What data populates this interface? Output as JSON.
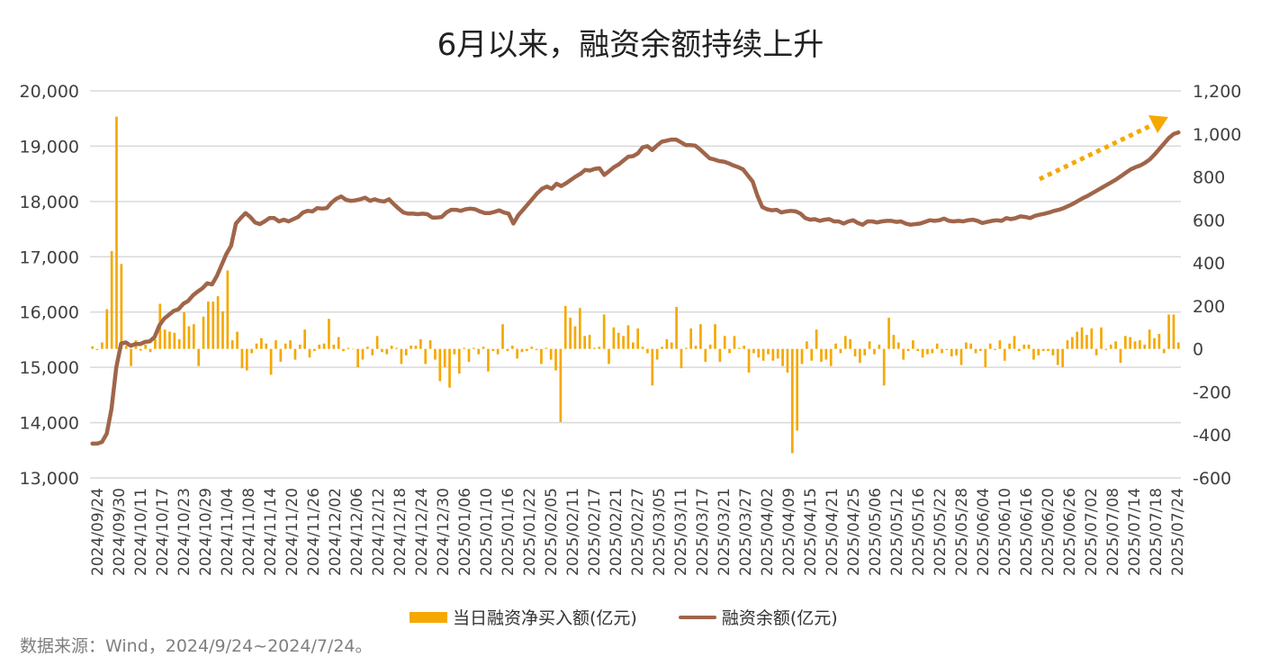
{
  "title": "6月以来，融资余额持续上升",
  "source": "数据来源：Wind，2024/9/24~2024/7/24。",
  "colors": {
    "bar": "#F5A800",
    "line": "#A0654A",
    "arrow": "#F5A800",
    "grid": "#d9d9d9",
    "axis_text": "#404040"
  },
  "chart_data": {
    "type": "bar+line",
    "title": "6月以来，融资余额持续上升",
    "legend": {
      "placement": "bottom",
      "entries": [
        "当日融资净买入额(亿元)",
        "融资余额(亿元)"
      ]
    },
    "grid": true,
    "y_left": {
      "range": [
        13000,
        20000
      ],
      "ticks": [
        13000,
        14000,
        15000,
        16000,
        17000,
        18000,
        19000,
        20000
      ],
      "tick_labels": [
        "13,000",
        "14,000",
        "15,000",
        "16,000",
        "17,000",
        "18,000",
        "19,000",
        "20,000"
      ]
    },
    "y_right": {
      "range": [
        -600,
        1200
      ],
      "ticks": [
        -600,
        -400,
        -200,
        0,
        200,
        400,
        600,
        800,
        1000,
        1200
      ],
      "tick_labels": [
        "-600",
        "-400",
        "-200",
        "0",
        "200",
        "400",
        "600",
        "800",
        "1,000",
        "1,200"
      ]
    },
    "x_tick_labels": [
      "2024/09/24",
      "2024/09/30",
      "2024/10/11",
      "2024/10/17",
      "2024/10/23",
      "2024/10/29",
      "2024/11/04",
      "2024/11/08",
      "2024/11/14",
      "2024/11/20",
      "2024/11/26",
      "2024/12/02",
      "2024/12/06",
      "2024/12/12",
      "2024/12/18",
      "2024/12/24",
      "2024/12/30",
      "2025/01/06",
      "2025/01/10",
      "2025/01/16",
      "2025/01/22",
      "2025/02/05",
      "2025/02/11",
      "2025/02/17",
      "2025/02/21",
      "2025/02/27",
      "2025/03/05",
      "2025/03/11",
      "2025/03/17",
      "2025/03/21",
      "2025/03/27",
      "2025/04/02",
      "2025/04/09",
      "2025/04/15",
      "2025/04/21",
      "2025/04/25",
      "2025/05/06",
      "2025/05/12",
      "2025/05/16",
      "2025/05/22",
      "2025/05/28",
      "2025/06/04",
      "2025/06/10",
      "2025/06/16",
      "2025/06/20",
      "2025/06/26",
      "2025/07/02",
      "2025/07/08",
      "2025/07/14",
      "2025/07/18",
      "2025/07/24"
    ],
    "series": [
      {
        "name": "当日融资净买入额(亿元)",
        "type": "bar",
        "axis": "right",
        "values": [
          12,
          -5,
          30,
          185,
          455,
          1080,
          395,
          15,
          -80,
          40,
          -8,
          20,
          -15,
          45,
          210,
          90,
          80,
          75,
          45,
          170,
          105,
          115,
          -80,
          150,
          220,
          220,
          245,
          175,
          365,
          40,
          80,
          -90,
          -100,
          -20,
          25,
          50,
          25,
          -120,
          40,
          -60,
          25,
          40,
          -50,
          20,
          90,
          -40,
          -10,
          20,
          25,
          140,
          20,
          55,
          -10,
          5,
          0,
          -85,
          -50,
          10,
          -30,
          60,
          -15,
          -25,
          15,
          5,
          -70,
          -30,
          15,
          15,
          45,
          -70,
          40,
          -50,
          -150,
          -85,
          -180,
          -25,
          -115,
          5,
          -60,
          5,
          -25,
          10,
          -105,
          -10,
          -25,
          115,
          -10,
          15,
          -45,
          -15,
          -10,
          10,
          -5,
          -70,
          5,
          -50,
          -100,
          -340,
          200,
          145,
          105,
          190,
          60,
          65,
          5,
          10,
          160,
          -70,
          100,
          75,
          60,
          110,
          30,
          95,
          10,
          -20,
          -170,
          -50,
          10,
          45,
          30,
          195,
          -90,
          5,
          95,
          15,
          115,
          -60,
          20,
          115,
          -60,
          60,
          -20,
          60,
          5,
          15,
          -110,
          -20,
          -40,
          -55,
          -25,
          -55,
          -45,
          -80,
          -110,
          -485,
          -380,
          -70,
          35,
          -55,
          90,
          -60,
          -50,
          -80,
          25,
          -20,
          60,
          45,
          -35,
          -65,
          -30,
          35,
          -25,
          20,
          -170,
          145,
          65,
          30,
          -50,
          -10,
          40,
          -10,
          -40,
          -25,
          -20,
          25,
          -20,
          -5,
          -35,
          -30,
          -75,
          30,
          25,
          -20,
          -10,
          -85,
          25,
          -5,
          40,
          -55,
          25,
          60,
          -10,
          20,
          20,
          -50,
          -30,
          -10,
          -10,
          -30,
          -75,
          -85,
          40,
          55,
          80,
          100,
          65,
          95,
          -30,
          100,
          -5,
          20,
          35,
          -65,
          60,
          55,
          35,
          40,
          20,
          90,
          50,
          70,
          -20,
          160,
          160,
          30
        ]
      },
      {
        "name": "融资余额(亿元)",
        "type": "line",
        "axis": "left",
        "values": [
          13620,
          13620,
          13650,
          13800,
          14250,
          15000,
          15430,
          15450,
          15390,
          15420,
          15420,
          15460,
          15470,
          15550,
          15760,
          15880,
          15950,
          16020,
          16050,
          16150,
          16200,
          16300,
          16370,
          16430,
          16520,
          16500,
          16650,
          16850,
          17050,
          17200,
          17600,
          17700,
          17790,
          17720,
          17620,
          17590,
          17640,
          17700,
          17700,
          17640,
          17670,
          17640,
          17680,
          17720,
          17800,
          17830,
          17820,
          17880,
          17870,
          17880,
          17980,
          18050,
          18090,
          18030,
          18010,
          18020,
          18040,
          18070,
          18010,
          18040,
          18010,
          18000,
          18040,
          17950,
          17870,
          17800,
          17780,
          17780,
          17770,
          17780,
          17770,
          17710,
          17710,
          17720,
          17800,
          17850,
          17850,
          17830,
          17860,
          17870,
          17860,
          17820,
          17790,
          17790,
          17810,
          17840,
          17800,
          17780,
          17600,
          17750,
          17850,
          17950,
          18050,
          18150,
          18230,
          18270,
          18230,
          18320,
          18280,
          18330,
          18390,
          18450,
          18500,
          18570,
          18560,
          18590,
          18600,
          18480,
          18550,
          18620,
          18670,
          18740,
          18810,
          18820,
          18870,
          18980,
          19000,
          18930,
          19010,
          19080,
          19100,
          19120,
          19120,
          19070,
          19020,
          19020,
          19010,
          18940,
          18860,
          18780,
          18760,
          18730,
          18720,
          18690,
          18650,
          18620,
          18580,
          18470,
          18360,
          18100,
          17900,
          17860,
          17840,
          17850,
          17800,
          17820,
          17830,
          17820,
          17780,
          17700,
          17670,
          17680,
          17650,
          17670,
          17680,
          17640,
          17640,
          17600,
          17640,
          17660,
          17610,
          17580,
          17640,
          17640,
          17620,
          17640,
          17650,
          17650,
          17630,
          17640,
          17600,
          17580,
          17590,
          17600,
          17630,
          17660,
          17650,
          17660,
          17690,
          17650,
          17640,
          17650,
          17640,
          17660,
          17670,
          17650,
          17610,
          17630,
          17650,
          17660,
          17650,
          17700,
          17680,
          17700,
          17730,
          17720,
          17700,
          17740,
          17760,
          17780,
          17800,
          17830,
          17850,
          17880,
          17920,
          17960,
          18010,
          18060,
          18100,
          18150,
          18200,
          18250,
          18300,
          18350,
          18400,
          18460,
          18520,
          18580,
          18620,
          18650,
          18700,
          18760,
          18850,
          18950,
          19050,
          19150,
          19220,
          19250
        ]
      }
    ],
    "annotation": "dotted upward arrow on the right indicating the rising trend since June"
  }
}
